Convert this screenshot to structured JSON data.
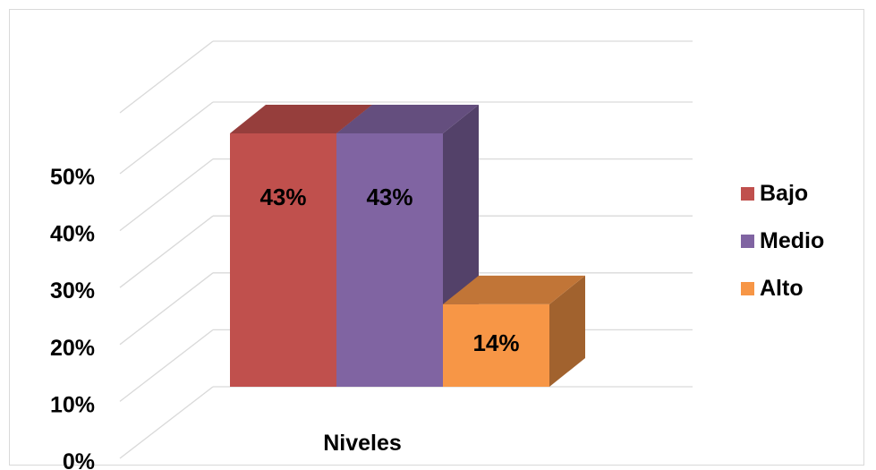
{
  "chart_data": {
    "type": "bar",
    "title": "",
    "xlabel": "Niveles",
    "ylabel": "",
    "categories": [
      "Niveles"
    ],
    "series": [
      {
        "name": "Bajo",
        "values": [
          43
        ],
        "label": "43%",
        "color": "#c0504d"
      },
      {
        "name": "Medio",
        "values": [
          43
        ],
        "label": "43%",
        "color": "#8064a2"
      },
      {
        "name": "Alto",
        "values": [
          14
        ],
        "label": "14%",
        "color": "#f79646"
      }
    ],
    "y_ticks": [
      "0%",
      "10%",
      "20%",
      "30%",
      "40%",
      "50%"
    ],
    "ylim": [
      0,
      50
    ],
    "grid": true,
    "legend_position": "right",
    "style": "3d-column"
  }
}
